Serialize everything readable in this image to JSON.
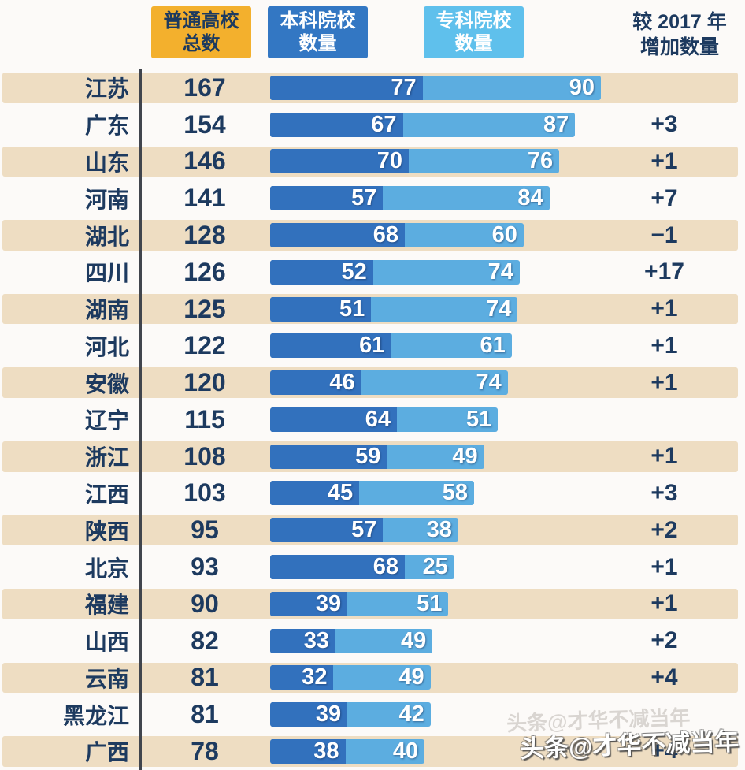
{
  "header": {
    "legend": [
      {
        "line1": "普通高校",
        "line2": "总数",
        "color": "#f3b02d",
        "text_color": "#1d3a5f"
      },
      {
        "line1": "本科院校",
        "line2": "数量",
        "color": "#3377c3",
        "text_color": "#ffffff"
      },
      {
        "line1": "专科院校",
        "line2": "数量",
        "color": "#5fc0ec",
        "text_color": "#ffffff"
      }
    ],
    "change_label_line1": "较 2017 年",
    "change_label_line2": "增加数量"
  },
  "chart_data": {
    "type": "bar",
    "orientation": "horizontal",
    "stacked": true,
    "title": "",
    "legend_position": "top",
    "x_max_value": 167,
    "series_names": [
      "本科院校数量",
      "专科院校数量"
    ],
    "categories": [
      "江苏",
      "广东",
      "山东",
      "河南",
      "湖北",
      "四川",
      "湖南",
      "河北",
      "安徽",
      "辽宁",
      "浙江",
      "江西",
      "陕西",
      "北京",
      "福建",
      "山西",
      "云南",
      "黑龙江",
      "广西"
    ],
    "series": [
      {
        "name": "本科院校数量",
        "values": [
          77,
          67,
          70,
          57,
          68,
          52,
          51,
          61,
          46,
          64,
          59,
          45,
          57,
          68,
          39,
          33,
          32,
          39,
          38
        ]
      },
      {
        "name": "专科院校数量",
        "values": [
          90,
          87,
          76,
          84,
          60,
          74,
          74,
          61,
          74,
          51,
          49,
          58,
          38,
          25,
          51,
          49,
          49,
          42,
          40
        ]
      }
    ],
    "rows": [
      {
        "province": "江苏",
        "total": 167,
        "benke": 77,
        "zhuanke": 90,
        "change": ""
      },
      {
        "province": "广东",
        "total": 154,
        "benke": 67,
        "zhuanke": 87,
        "change": "+3"
      },
      {
        "province": "山东",
        "total": 146,
        "benke": 70,
        "zhuanke": 76,
        "change": "+1"
      },
      {
        "province": "河南",
        "total": 141,
        "benke": 57,
        "zhuanke": 84,
        "change": "+7"
      },
      {
        "province": "湖北",
        "total": 128,
        "benke": 68,
        "zhuanke": 60,
        "change": "−1"
      },
      {
        "province": "四川",
        "total": 126,
        "benke": 52,
        "zhuanke": 74,
        "change": "+17"
      },
      {
        "province": "湖南",
        "total": 125,
        "benke": 51,
        "zhuanke": 74,
        "change": "+1"
      },
      {
        "province": "河北",
        "total": 122,
        "benke": 61,
        "zhuanke": 61,
        "change": "+1"
      },
      {
        "province": "安徽",
        "total": 120,
        "benke": 46,
        "zhuanke": 74,
        "change": "+1"
      },
      {
        "province": "辽宁",
        "total": 115,
        "benke": 64,
        "zhuanke": 51,
        "change": ""
      },
      {
        "province": "浙江",
        "total": 108,
        "benke": 59,
        "zhuanke": 49,
        "change": "+1"
      },
      {
        "province": "江西",
        "total": 103,
        "benke": 45,
        "zhuanke": 58,
        "change": "+3"
      },
      {
        "province": "陕西",
        "total": 95,
        "benke": 57,
        "zhuanke": 38,
        "change": "+2"
      },
      {
        "province": "北京",
        "total": 93,
        "benke": 68,
        "zhuanke": 25,
        "change": "+1"
      },
      {
        "province": "福建",
        "total": 90,
        "benke": 39,
        "zhuanke": 51,
        "change": "+1"
      },
      {
        "province": "山西",
        "total": 82,
        "benke": 33,
        "zhuanke": 49,
        "change": "+2"
      },
      {
        "province": "云南",
        "total": 81,
        "benke": 32,
        "zhuanke": 49,
        "change": "+4"
      },
      {
        "province": "黑龙江",
        "total": 81,
        "benke": 39,
        "zhuanke": 42,
        "change": ""
      },
      {
        "province": "广西",
        "total": 78,
        "benke": 38,
        "zhuanke": 40,
        "change": "+4"
      }
    ]
  },
  "colors": {
    "benke_bar": "#3271bd",
    "zhuanke_bar": "#5cade0",
    "stripe": "#eeddc2",
    "text_navy": "#1d3a5f",
    "divider": "#41454d",
    "legend_total_bg": "#f3b02d"
  },
  "watermark": {
    "text": "头条@才华不减当年"
  }
}
